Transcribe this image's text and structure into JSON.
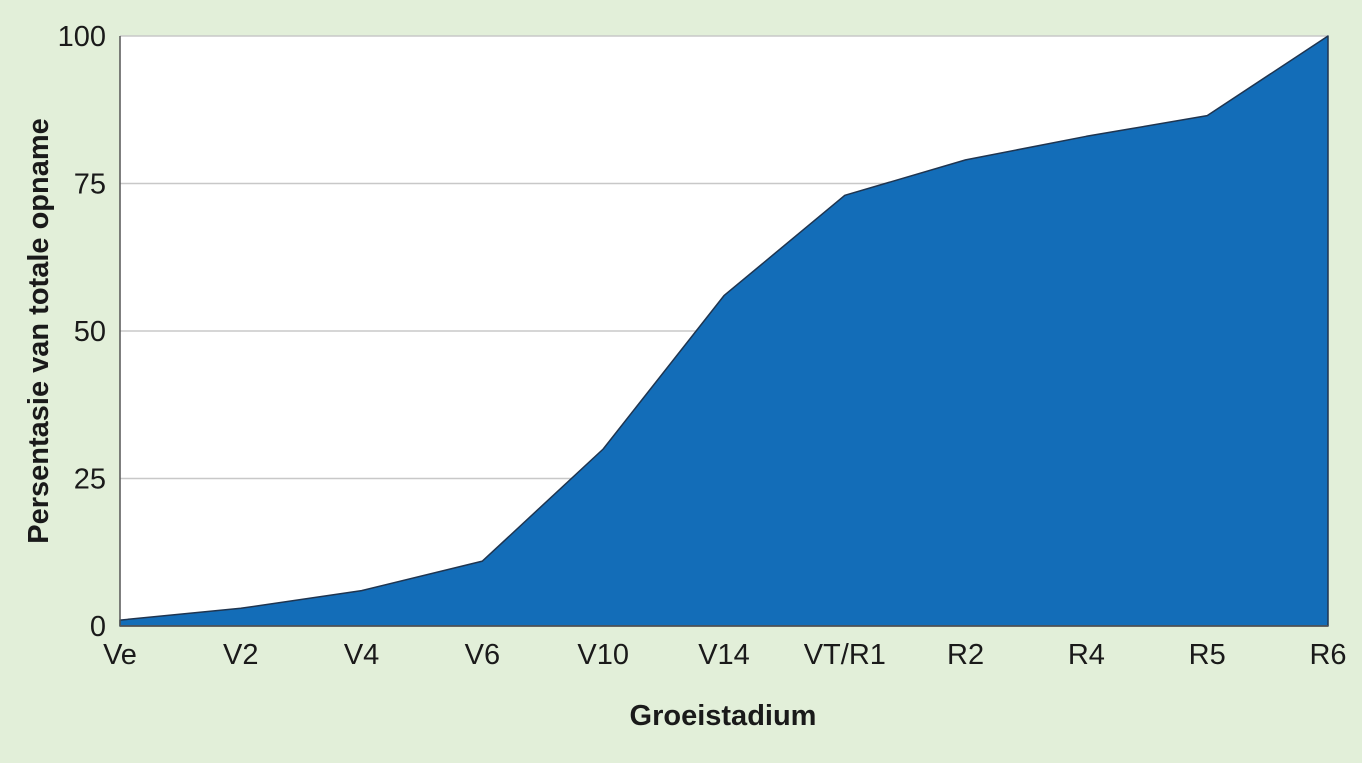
{
  "colors": {
    "background": "#e2efd9",
    "plot_area": "#ffffff",
    "area_fill": "#136db8",
    "area_edge": "#1f3550",
    "gridline": "#c8c8c8",
    "text": "#1a1a1a"
  },
  "chart_data": {
    "type": "area",
    "title": "",
    "xlabel": "Groeistadium",
    "ylabel": "Persentasie van totale opname",
    "categories": [
      "Ve",
      "V2",
      "V4",
      "V6",
      "V10",
      "V14",
      "VT/R1",
      "R2",
      "R4",
      "R5",
      "R6"
    ],
    "series": [
      {
        "values": [
          1,
          3,
          6,
          11,
          30,
          56,
          73,
          79,
          83,
          86.5,
          100
        ]
      }
    ],
    "ylim": [
      0,
      100
    ],
    "yticks": [
      0,
      25,
      50,
      75,
      100
    ],
    "grid": true,
    "legend": "none"
  }
}
